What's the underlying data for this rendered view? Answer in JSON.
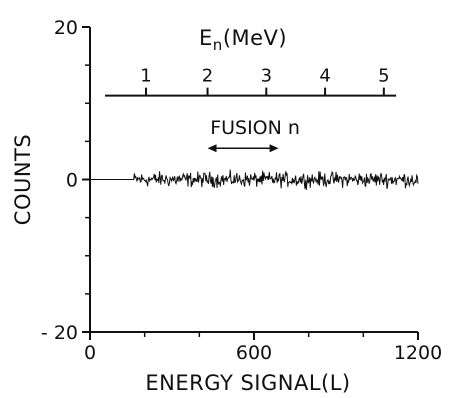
{
  "chart_data": {
    "type": "line",
    "xlabel": "ENERGY SIGNAL(L)",
    "ylabel": "COUNTS",
    "xlim": [
      0,
      1200
    ],
    "ylim": [
      -20,
      20
    ],
    "x_ticks": [
      "0",
      "600",
      "1200"
    ],
    "x_tick_values": [
      0,
      600,
      1200
    ],
    "y_ticks": [
      "20",
      "0",
      "- 20"
    ],
    "y_tick_values": [
      20,
      0,
      -20
    ],
    "grid": false,
    "secondary_axis": {
      "label_main": "E",
      "label_sub": "n",
      "label_unit": "(MeV)",
      "ticks": [
        "1",
        "2",
        "3",
        "4",
        "5"
      ],
      "tick_energy_signal": [
        205,
        430,
        645,
        860,
        1075
      ],
      "axis_range_energy_signal": [
        55,
        1120
      ],
      "y_level": 11
    },
    "annotation": {
      "text": "FUSION n",
      "arrow_range_energy_signal": [
        430,
        690
      ],
      "y": 4.1
    },
    "series": [
      {
        "x_start": 0,
        "x_noise_start": 160,
        "x_end": 1200,
        "mean": 0,
        "amplitude": 0.9,
        "points": 430
      }
    ]
  }
}
